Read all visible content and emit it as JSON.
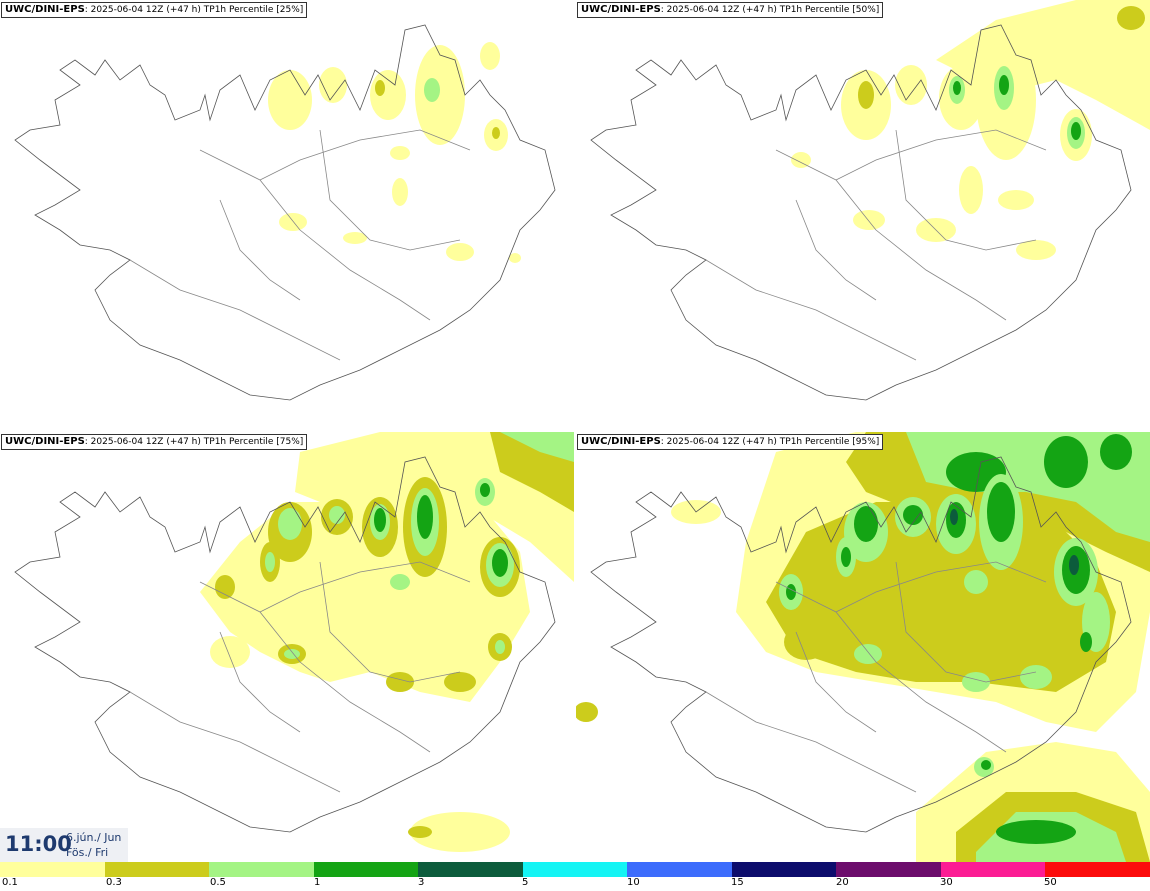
{
  "panels": [
    {
      "model": "UWC/DINI-EPS",
      "run": "2025-06-04 12Z (+47 h)",
      "field": "TP1h Percentile",
      "percentile": "[25%]"
    },
    {
      "model": "UWC/DINI-EPS",
      "run": "2025-06-04 12Z (+47 h)",
      "field": "TP1h Percentile",
      "percentile": "[50%]"
    },
    {
      "model": "UWC/DINI-EPS",
      "run": "2025-06-04 12Z (+47 h)",
      "field": "TP1h Percentile",
      "percentile": "[75%]"
    },
    {
      "model": "UWC/DINI-EPS",
      "run": "2025-06-04 12Z (+47 h)",
      "field": "TP1h Percentile",
      "percentile": "[95%]"
    }
  ],
  "valid_time": {
    "time": "11:00",
    "date_line1": "6.jún./ Jun",
    "date_line2": "Fös./ Fri"
  },
  "legend": {
    "labels": [
      "0.1",
      "0.3",
      "0.5",
      "1",
      "3",
      "5",
      "10",
      "15",
      "20",
      "30",
      "50"
    ],
    "colors": [
      "#ffff9c",
      "#cccc1c",
      "#a4f484",
      "#14a414",
      "#0c5c3c",
      "#14f4f4",
      "#3c6cfc",
      "#0c0c6c",
      "#6c0c6c",
      "#fc1c94",
      "#fc0c0c"
    ]
  },
  "colors": {
    "c1": "#ffff9c",
    "c2": "#cccc1c",
    "c3": "#a4f484",
    "c4": "#14a414",
    "c5": "#0c5c3c",
    "coast": "#555555"
  }
}
